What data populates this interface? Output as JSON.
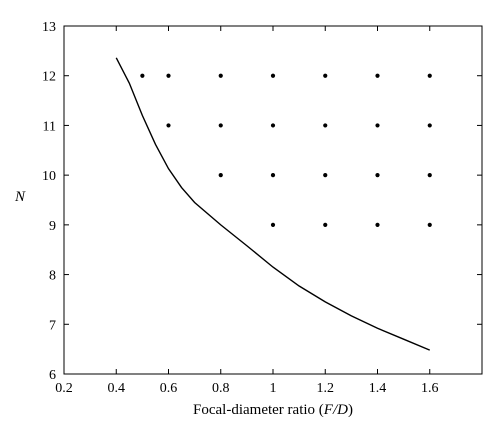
{
  "chart_data": {
    "type": "scatter",
    "xlabel_parts": [
      "Focal-diameter ratio (",
      "F/D",
      ")"
    ],
    "ylabel": "N",
    "xlim": [
      0.2,
      1.8
    ],
    "ylim": [
      6,
      13
    ],
    "xticks": [
      "0.2",
      "0.4",
      "0.6",
      "0.8",
      "1",
      "1.2",
      "1.4",
      "1.6"
    ],
    "yticks": [
      "6",
      "7",
      "8",
      "9",
      "10",
      "11",
      "12",
      "13"
    ],
    "grid": false,
    "curve": {
      "x": [
        0.4,
        0.45,
        0.5,
        0.55,
        0.6,
        0.65,
        0.7,
        0.8,
        0.9,
        1.0,
        1.1,
        1.2,
        1.3,
        1.4,
        1.5,
        1.6
      ],
      "y": [
        12.36,
        11.85,
        11.2,
        10.62,
        10.13,
        9.75,
        9.45,
        9.0,
        8.58,
        8.15,
        7.77,
        7.45,
        7.17,
        6.92,
        6.7,
        6.48
      ]
    },
    "points": {
      "x": [
        0.5,
        0.6,
        0.8,
        1.0,
        1.2,
        1.4,
        1.6,
        0.6,
        0.8,
        1.0,
        1.2,
        1.4,
        1.6,
        0.8,
        1.0,
        1.2,
        1.4,
        1.6,
        1.0,
        1.2,
        1.4,
        1.6
      ],
      "y": [
        12,
        12,
        12,
        12,
        12,
        12,
        12,
        11,
        11,
        11,
        11,
        11,
        11,
        10,
        10,
        10,
        10,
        10,
        9,
        9,
        9,
        9
      ]
    },
    "colors": {
      "line": "#000000",
      "points": "#000000",
      "frame": "#000000"
    }
  }
}
